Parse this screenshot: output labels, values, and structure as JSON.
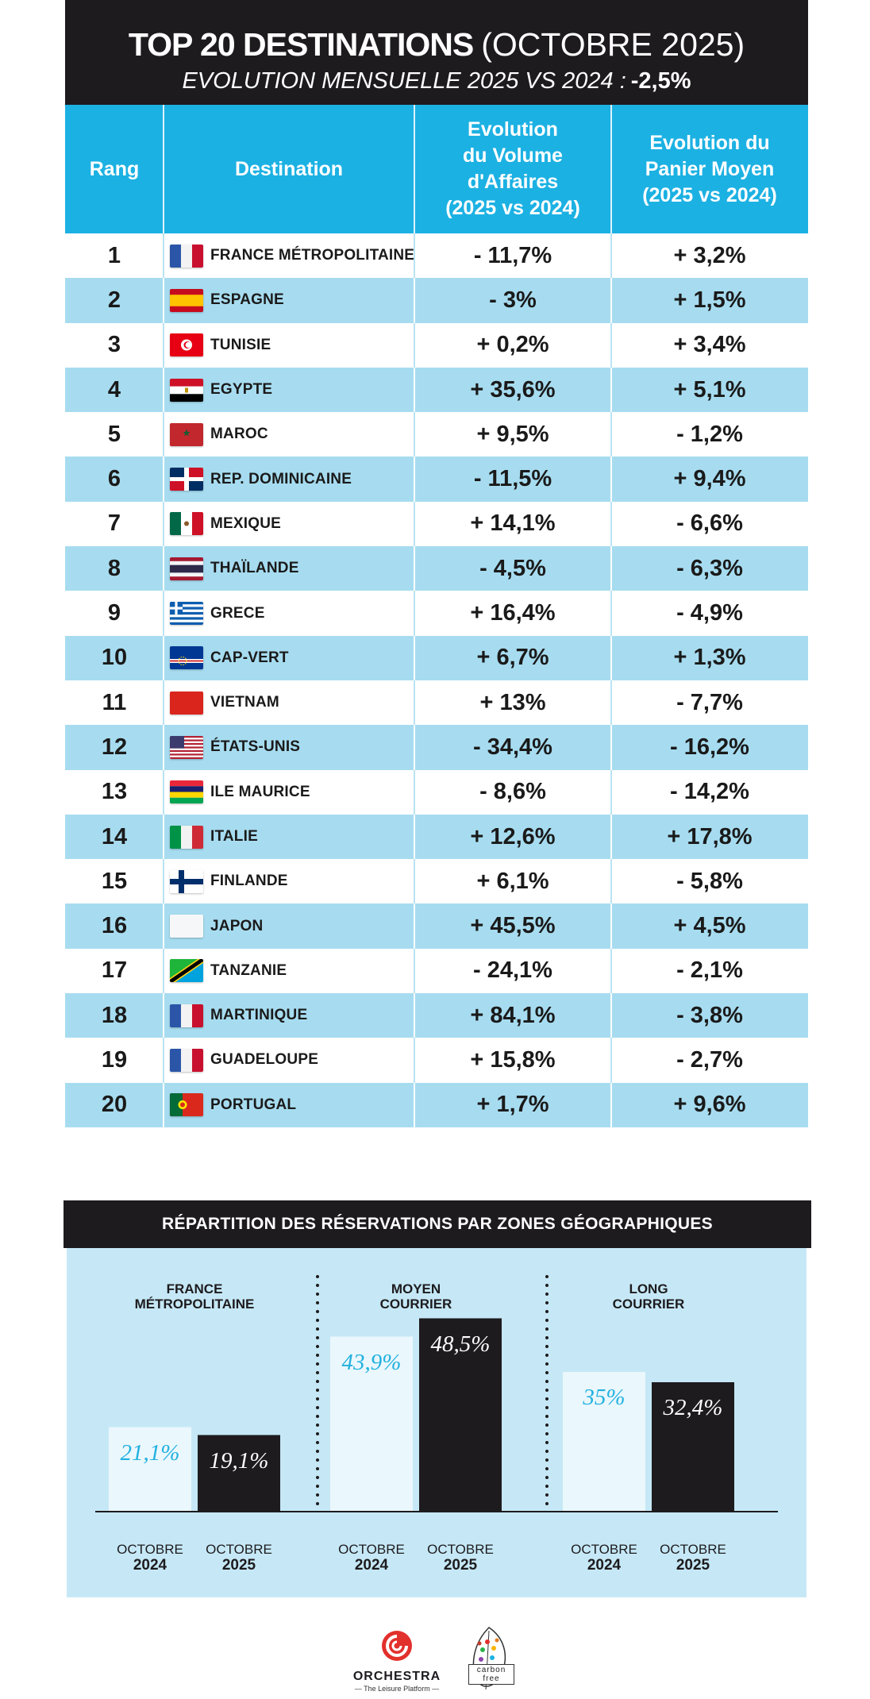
{
  "header": {
    "title_bold": "TOP 20 DESTINATIONS",
    "title_normal": "(OCTOBRE 2025)",
    "subtitle": "EVOLUTION MENSUELLE 2025 VS 2024 :",
    "subtitle_value": "-2,5%"
  },
  "table": {
    "col_rank": "Rang",
    "col_destination": "Destination",
    "col_volume": [
      "Evolution",
      "du Volume",
      "d'Affaires",
      "(2025 vs 2024)"
    ],
    "col_panier": [
      "Evolution du",
      "Panier Moyen",
      "(2025 vs 2024)"
    ],
    "rows": [
      {
        "rank": "1",
        "destination": "FRANCE MÉTROPOLITAINE",
        "flag": "france-flag-icon",
        "volume": "- 11,7%",
        "panier": "+ 3,2%"
      },
      {
        "rank": "2",
        "destination": "ESPAGNE",
        "flag": "spain-flag-icon",
        "volume": "- 3%",
        "panier": "+ 1,5%"
      },
      {
        "rank": "3",
        "destination": "TUNISIE",
        "flag": "tunisia-flag-icon",
        "volume": "+ 0,2%",
        "panier": "+ 3,4%"
      },
      {
        "rank": "4",
        "destination": "EGYPTE",
        "flag": "egypt-flag-icon",
        "volume": "+ 35,6%",
        "panier": "+ 5,1%"
      },
      {
        "rank": "5",
        "destination": "MAROC",
        "flag": "morocco-flag-icon",
        "volume": "+ 9,5%",
        "panier": "- 1,2%"
      },
      {
        "rank": "6",
        "destination": "REP. DOMINICAINE",
        "flag": "dominican-republic-flag-icon",
        "volume": "- 11,5%",
        "panier": "+ 9,4%"
      },
      {
        "rank": "7",
        "destination": "MEXIQUE",
        "flag": "mexico-flag-icon",
        "volume": "+ 14,1%",
        "panier": "- 6,6%"
      },
      {
        "rank": "8",
        "destination": "THAÏLANDE",
        "flag": "thailand-flag-icon",
        "volume": "- 4,5%",
        "panier": "- 6,3%"
      },
      {
        "rank": "9",
        "destination": "GRECE",
        "flag": "greece-flag-icon",
        "volume": "+ 16,4%",
        "panier": "- 4,9%"
      },
      {
        "rank": "10",
        "destination": "CAP-VERT",
        "flag": "cape-verde-flag-icon",
        "volume": "+ 6,7%",
        "panier": "+ 1,3%"
      },
      {
        "rank": "11",
        "destination": "VIETNAM",
        "flag": "vietnam-flag-icon",
        "volume": "+ 13%",
        "panier": "- 7,7%"
      },
      {
        "rank": "12",
        "destination": "ÉTATS-UNIS",
        "flag": "usa-flag-icon",
        "volume": "- 34,4%",
        "panier": "- 16,2%"
      },
      {
        "rank": "13",
        "destination": "ILE MAURICE",
        "flag": "mauritius-flag-icon",
        "volume": "- 8,6%",
        "panier": "- 14,2%"
      },
      {
        "rank": "14",
        "destination": "ITALIE",
        "flag": "italy-flag-icon",
        "volume": "+ 12,6%",
        "panier": "+ 17,8%"
      },
      {
        "rank": "15",
        "destination": "FINLANDE",
        "flag": "finland-flag-icon",
        "volume": "+ 6,1%",
        "panier": "- 5,8%"
      },
      {
        "rank": "16",
        "destination": "JAPON",
        "flag": "japan-flag-icon",
        "volume": "+ 45,5%",
        "panier": "+ 4,5%"
      },
      {
        "rank": "17",
        "destination": "TANZANIE",
        "flag": "tanzania-flag-icon",
        "volume": "- 24,1%",
        "panier": "- 2,1%"
      },
      {
        "rank": "18",
        "destination": "MARTINIQUE",
        "flag": "martinique-flag-icon",
        "volume": "+ 84,1%",
        "panier": "- 3,8%"
      },
      {
        "rank": "19",
        "destination": "GUADELOUPE",
        "flag": "guadeloupe-flag-icon",
        "volume": "+ 15,8%",
        "panier": "- 2,7%"
      },
      {
        "rank": "20",
        "destination": "PORTUGAL",
        "flag": "portugal-flag-icon",
        "volume": "+ 1,7%",
        "panier": "+ 9,6%"
      }
    ]
  },
  "chart_data": {
    "type": "bar",
    "title": "RÉPARTITION DES RÉSERVATIONS PAR ZONES GÉOGRAPHIQUES",
    "categories": [
      {
        "label_lines": [
          "FRANCE",
          "MÉTROPOLITAINE"
        ]
      },
      {
        "label_lines": [
          "MOYEN",
          "COURRIER"
        ]
      },
      {
        "label_lines": [
          "LONG",
          "COURRIER"
        ]
      }
    ],
    "series": [
      {
        "period": [
          "OCTOBRE",
          "2024"
        ],
        "values": [
          21.1,
          43.9,
          35.0
        ],
        "labels": [
          "21,1%",
          "43,9%",
          "35%"
        ],
        "color": "#eaf7fc",
        "label_color": "#21b1e0"
      },
      {
        "period": [
          "OCTOBRE",
          "2025"
        ],
        "values": [
          19.1,
          48.5,
          32.4
        ],
        "labels": [
          "19,1%",
          "48,5%",
          "32,4%"
        ],
        "color": "#1d1b1e",
        "label_color": "#ffffff"
      }
    ],
    "ylim": [
      0,
      100
    ]
  },
  "footer": {
    "brand": "ORCHESTRA",
    "tagline": "— The Leisure Platform —",
    "carbon_line1": "carbon",
    "carbon_line2": "free"
  },
  "colors": {
    "header_bg": "#1d1b1e",
    "table_header_bg": "#1cb1e3",
    "row_alt_bg": "#a7dcf0",
    "panel_bg": "#c6e8f6",
    "brand_red": "#e2302c"
  }
}
